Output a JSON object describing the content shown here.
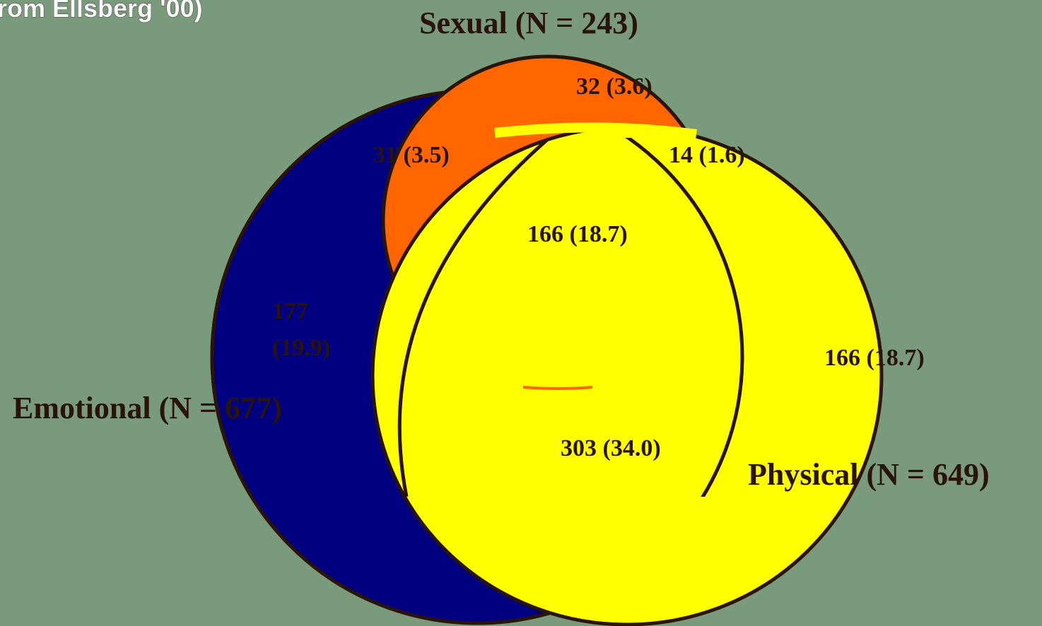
{
  "header": {
    "title": "rom Ellsberg '00)"
  },
  "sets": [
    {
      "label": "Sexual (N = 243)"
    },
    {
      "label": "Emotional (N = 677)"
    },
    {
      "label": "Physical (N = 649)"
    }
  ],
  "regions": [
    {
      "label": "32 (3.6)"
    },
    {
      "label": "31 (3.5)"
    },
    {
      "label": "14 (1.6)"
    },
    {
      "label": "166 (18.7)"
    },
    {
      "lines": [
        "177",
        "(19.9)"
      ]
    },
    {
      "label": "166 (18.7)"
    },
    {
      "label": "303 (34.0)"
    }
  ]
}
